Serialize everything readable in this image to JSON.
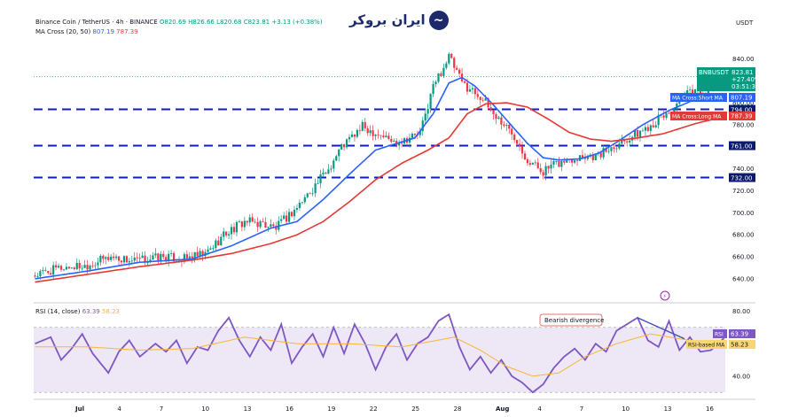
{
  "header": {
    "symbol": "Binance Coin / TetherUS · 4h · BINANCE",
    "ohlc": "O820.69 H826.66 L820.68 C823.81 +3.13 (+0.38%)",
    "ma_label": "MA Cross (20, 50)",
    "ma_short_value": "807.19",
    "ma_long_value": "787.39",
    "rsi_label": "RSI (14, close)",
    "rsi_value": "63.39",
    "rsi_ma_value": "58.23"
  },
  "logo": {
    "text": "ایران بروکر",
    "icon": "chart-swirl-icon"
  },
  "currency_label": "USDT",
  "price_tag": {
    "symbol": "BNBUSDT",
    "price": "823.81",
    "change": "+27.40%",
    "countdown": "03:51:39"
  },
  "ma_tags": [
    {
      "name": "MA Cross:Short MA",
      "value": "807.19"
    },
    {
      "name": "MA Cross:Long MA",
      "value": "787.39"
    }
  ],
  "rsi_tags": [
    {
      "name": "RSI",
      "value": "63.39"
    },
    {
      "name": "RSI-based MA",
      "value": "58.23"
    }
  ],
  "annotation": "Bearish divergence",
  "colors": {
    "bull": "#089981",
    "bear": "#f23645",
    "short_ma": "#2962ff",
    "long_ma": "#e53935",
    "levels": "#0d1cc8",
    "rsi": "#7e57c2",
    "rsi_ma": "#f7b731",
    "rsi_band": "#ede7f6",
    "divergence": "#3f51b5",
    "annotation_border": "#e57373"
  },
  "chart_data": [
    {
      "type": "candlestick",
      "timeframe": "4h",
      "ylim": [
        623,
        858
      ],
      "y_ticks": [
        640,
        660,
        680,
        700,
        720,
        740,
        760,
        780,
        800,
        820,
        840
      ],
      "y_tick_labels": [
        "640.00",
        "660.00",
        "680.00",
        "700.00",
        "720.00",
        "740.00",
        "760.00",
        "780.00",
        "800.00",
        "820.00",
        "840.00"
      ],
      "x_tick_labels": [
        "Jul",
        "4",
        "7",
        "10",
        "13",
        "16",
        "19",
        "22",
        "25",
        "28",
        "Aug",
        "4",
        "7",
        "10",
        "13",
        "16"
      ],
      "horizontal_levels": [
        {
          "value": 794,
          "label": "794.00"
        },
        {
          "value": 761,
          "label": "761.00"
        },
        {
          "value": 732,
          "label": "732.00"
        }
      ],
      "close_anchors": [
        [
          0,
          643
        ],
        [
          10,
          650
        ],
        [
          19,
          652
        ],
        [
          29,
          660
        ],
        [
          38,
          656
        ],
        [
          48,
          660
        ],
        [
          57,
          658
        ],
        [
          65,
          662
        ],
        [
          72,
          680
        ],
        [
          80,
          692
        ],
        [
          87,
          690
        ],
        [
          92,
          686
        ],
        [
          100,
          705
        ],
        [
          107,
          725
        ],
        [
          112,
          740
        ],
        [
          117,
          760
        ],
        [
          125,
          778
        ],
        [
          132,
          771
        ],
        [
          137,
          764
        ],
        [
          147,
          772
        ],
        [
          152,
          815
        ],
        [
          158,
          842
        ],
        [
          163,
          818
        ],
        [
          170,
          806
        ],
        [
          175,
          790
        ],
        [
          180,
          778
        ],
        [
          184,
          767
        ],
        [
          188,
          748
        ],
        [
          194,
          738
        ],
        [
          199,
          744
        ],
        [
          208,
          752
        ],
        [
          215,
          752
        ],
        [
          222,
          763
        ],
        [
          230,
          772
        ],
        [
          238,
          785
        ],
        [
          245,
          796
        ],
        [
          248,
          806
        ],
        [
          252,
          812
        ],
        [
          257,
          809
        ],
        [
          261,
          818
        ],
        [
          263,
          823.81
        ]
      ],
      "series": [
        {
          "name": "MA Cross:Short MA",
          "anchors": [
            [
              0,
              640
            ],
            [
              20,
              647
            ],
            [
              40,
              655
            ],
            [
              60,
              658
            ],
            [
              75,
              670
            ],
            [
              90,
              686
            ],
            [
              100,
              692
            ],
            [
              110,
              712
            ],
            [
              120,
              735
            ],
            [
              130,
              757
            ],
            [
              138,
              763
            ],
            [
              145,
              768
            ],
            [
              152,
              790
            ],
            [
              158,
              818
            ],
            [
              163,
              823
            ],
            [
              168,
              815
            ],
            [
              175,
              798
            ],
            [
              182,
              779
            ],
            [
              188,
              763
            ],
            [
              194,
              750
            ],
            [
              200,
              748
            ],
            [
              208,
              749
            ],
            [
              215,
              754
            ],
            [
              222,
              764
            ],
            [
              232,
              780
            ],
            [
              242,
              793
            ],
            [
              252,
              803
            ],
            [
              263,
              807.19
            ]
          ]
        },
        {
          "name": "MA Cross:Long MA",
          "anchors": [
            [
              0,
              637
            ],
            [
              20,
              644
            ],
            [
              40,
              651
            ],
            [
              60,
              657
            ],
            [
              75,
              663
            ],
            [
              90,
              672
            ],
            [
              100,
              680
            ],
            [
              110,
              692
            ],
            [
              120,
              710
            ],
            [
              130,
              730
            ],
            [
              140,
              745
            ],
            [
              150,
              757
            ],
            [
              158,
              768
            ],
            [
              165,
              790
            ],
            [
              172,
              799
            ],
            [
              180,
              800
            ],
            [
              188,
              796
            ],
            [
              196,
              785
            ],
            [
              204,
              773
            ],
            [
              212,
              767
            ],
            [
              220,
              765
            ],
            [
              230,
              768
            ],
            [
              240,
              772
            ],
            [
              252,
              781
            ],
            [
              263,
              787.39
            ]
          ]
        }
      ]
    },
    {
      "type": "line",
      "ylim": [
        29,
        83
      ],
      "band": [
        30,
        70
      ],
      "y_ticks": [
        40,
        80
      ],
      "y_tick_labels": [
        "40.00",
        "80.00"
      ],
      "series": [
        {
          "name": "RSI",
          "anchors": [
            [
              0,
              60
            ],
            [
              6,
              64
            ],
            [
              10,
              50
            ],
            [
              14,
              57
            ],
            [
              18,
              66
            ],
            [
              22,
              54
            ],
            [
              28,
              42
            ],
            [
              32,
              55
            ],
            [
              36,
              62
            ],
            [
              40,
              52
            ],
            [
              46,
              60
            ],
            [
              50,
              55
            ],
            [
              54,
              62
            ],
            [
              58,
              48
            ],
            [
              62,
              58
            ],
            [
              66,
              56
            ],
            [
              70,
              68
            ],
            [
              74,
              76
            ],
            [
              78,
              62
            ],
            [
              82,
              52
            ],
            [
              86,
              64
            ],
            [
              90,
              56
            ],
            [
              94,
              72
            ],
            [
              98,
              48
            ],
            [
              102,
              58
            ],
            [
              106,
              66
            ],
            [
              110,
              52
            ],
            [
              114,
              70
            ],
            [
              118,
              54
            ],
            [
              122,
              72
            ],
            [
              126,
              60
            ],
            [
              130,
              44
            ],
            [
              134,
              58
            ],
            [
              138,
              66
            ],
            [
              142,
              50
            ],
            [
              146,
              60
            ],
            [
              150,
              64
            ],
            [
              154,
              74
            ],
            [
              158,
              78
            ],
            [
              162,
              58
            ],
            [
              166,
              44
            ],
            [
              170,
              52
            ],
            [
              174,
              42
            ],
            [
              178,
              50
            ],
            [
              182,
              40
            ],
            [
              186,
              36
            ],
            [
              190,
              30
            ],
            [
              194,
              35
            ],
            [
              198,
              45
            ],
            [
              202,
              52
            ],
            [
              206,
              57
            ],
            [
              210,
              50
            ],
            [
              214,
              60
            ],
            [
              218,
              55
            ],
            [
              222,
              68
            ],
            [
              226,
              72
            ],
            [
              230,
              76
            ],
            [
              234,
              62
            ],
            [
              238,
              58
            ],
            [
              242,
              74
            ],
            [
              246,
              56
            ],
            [
              250,
              64
            ],
            [
              254,
              55
            ],
            [
              258,
              56
            ],
            [
              263,
              63.39
            ]
          ]
        },
        {
          "name": "RSI-based MA",
          "anchors": [
            [
              0,
              58
            ],
            [
              20,
              58
            ],
            [
              40,
              56
            ],
            [
              60,
              57
            ],
            [
              80,
              64
            ],
            [
              100,
              60
            ],
            [
              120,
              60
            ],
            [
              140,
              58
            ],
            [
              160,
              64
            ],
            [
              170,
              56
            ],
            [
              180,
              46
            ],
            [
              190,
              40
            ],
            [
              200,
              42
            ],
            [
              210,
              52
            ],
            [
              222,
              60
            ],
            [
              235,
              66
            ],
            [
              250,
              62
            ],
            [
              263,
              58.23
            ]
          ]
        }
      ]
    }
  ]
}
